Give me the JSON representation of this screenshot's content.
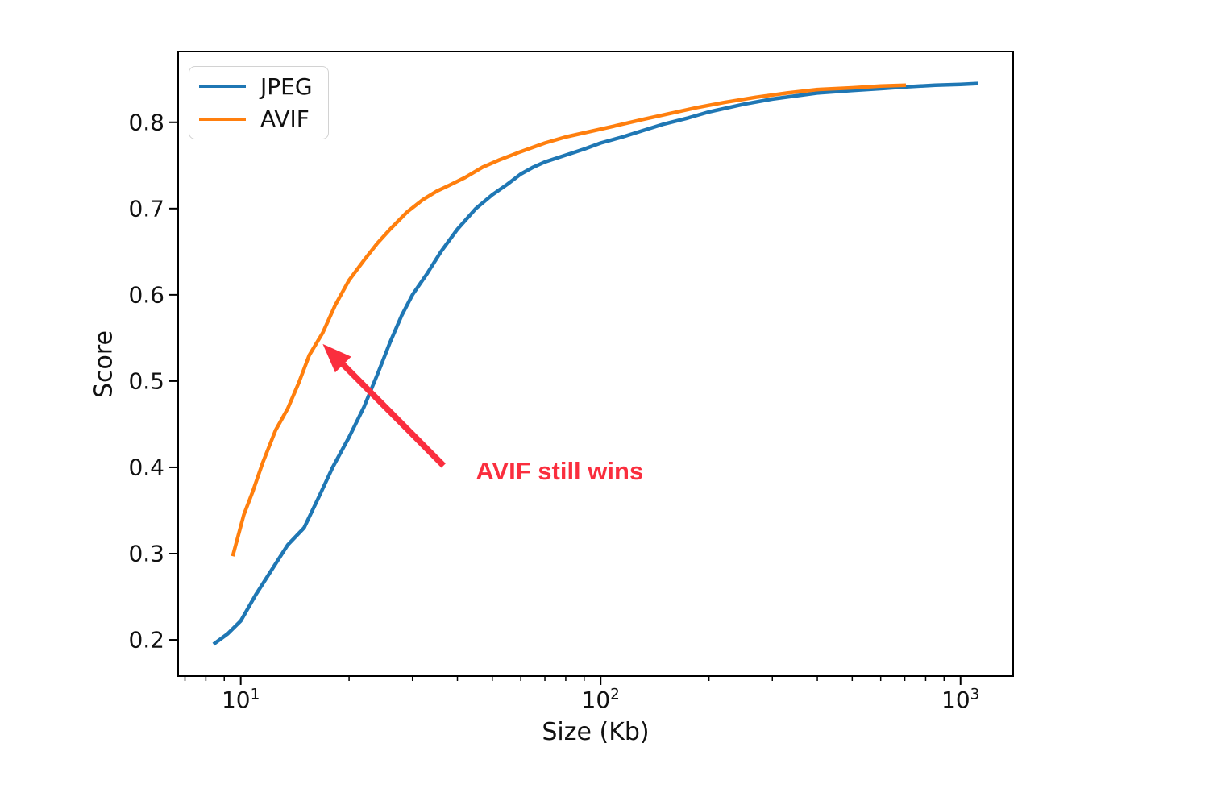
{
  "chart_data": {
    "type": "line",
    "title": "",
    "xlabel": "Size (Kb)",
    "ylabel": "Score",
    "x_scale": "log",
    "xlim": [
      6.7,
      1400
    ],
    "ylim": [
      0.158,
      0.882
    ],
    "grid": false,
    "legend_position": "upper-left",
    "xticks": {
      "major": [
        10,
        100,
        1000
      ],
      "major_labels": [
        {
          "base": "10",
          "exp": "1"
        },
        {
          "base": "10",
          "exp": "2"
        },
        {
          "base": "10",
          "exp": "3"
        }
      ],
      "minor": [
        7,
        8,
        9,
        20,
        30,
        40,
        50,
        60,
        70,
        80,
        90,
        200,
        300,
        400,
        500,
        600,
        700,
        800,
        900
      ]
    },
    "yticks": [
      0.2,
      0.3,
      0.4,
      0.5,
      0.6,
      0.7,
      0.8
    ],
    "series": [
      {
        "name": "JPEG",
        "color": "#1f77b4",
        "points": [
          [
            8.4,
            0.195
          ],
          [
            9.2,
            0.207
          ],
          [
            10,
            0.222
          ],
          [
            11,
            0.252
          ],
          [
            12.4,
            0.286
          ],
          [
            13.5,
            0.31
          ],
          [
            15,
            0.33
          ],
          [
            16.5,
            0.366
          ],
          [
            18,
            0.4
          ],
          [
            20,
            0.435
          ],
          [
            22,
            0.47
          ],
          [
            24,
            0.508
          ],
          [
            26,
            0.545
          ],
          [
            28,
            0.576
          ],
          [
            30,
            0.6
          ],
          [
            33,
            0.625
          ],
          [
            36,
            0.65
          ],
          [
            40,
            0.676
          ],
          [
            45,
            0.7
          ],
          [
            50,
            0.716
          ],
          [
            55,
            0.728
          ],
          [
            60,
            0.74
          ],
          [
            65,
            0.748
          ],
          [
            70,
            0.754
          ],
          [
            80,
            0.762
          ],
          [
            90,
            0.769
          ],
          [
            100,
            0.776
          ],
          [
            115,
            0.783
          ],
          [
            130,
            0.79
          ],
          [
            150,
            0.798
          ],
          [
            175,
            0.805
          ],
          [
            200,
            0.812
          ],
          [
            250,
            0.821
          ],
          [
            300,
            0.827
          ],
          [
            400,
            0.834
          ],
          [
            500,
            0.837
          ],
          [
            600,
            0.839
          ],
          [
            700,
            0.841
          ],
          [
            850,
            0.843
          ],
          [
            1000,
            0.844
          ],
          [
            1120,
            0.845
          ]
        ]
      },
      {
        "name": "AVIF",
        "color": "#ff7f0e",
        "points": [
          [
            9.5,
            0.297
          ],
          [
            10.2,
            0.345
          ],
          [
            10.8,
            0.372
          ],
          [
            11.5,
            0.405
          ],
          [
            12.5,
            0.443
          ],
          [
            13.5,
            0.468
          ],
          [
            14.5,
            0.498
          ],
          [
            15.5,
            0.53
          ],
          [
            16.9,
            0.556
          ],
          [
            18.3,
            0.588
          ],
          [
            20,
            0.617
          ],
          [
            22,
            0.64
          ],
          [
            24,
            0.66
          ],
          [
            26,
            0.676
          ],
          [
            29,
            0.696
          ],
          [
            32,
            0.71
          ],
          [
            35,
            0.72
          ],
          [
            38,
            0.727
          ],
          [
            42,
            0.736
          ],
          [
            47,
            0.748
          ],
          [
            52,
            0.756
          ],
          [
            60,
            0.766
          ],
          [
            70,
            0.776
          ],
          [
            80,
            0.783
          ],
          [
            95,
            0.79
          ],
          [
            110,
            0.796
          ],
          [
            130,
            0.803
          ],
          [
            155,
            0.81
          ],
          [
            185,
            0.817
          ],
          [
            220,
            0.823
          ],
          [
            270,
            0.829
          ],
          [
            330,
            0.834
          ],
          [
            400,
            0.838
          ],
          [
            500,
            0.84
          ],
          [
            600,
            0.842
          ],
          [
            705,
            0.843
          ]
        ]
      }
    ],
    "annotation": {
      "text": "AVIF still wins",
      "color": "#fa2e3e",
      "text_xy": [
        45,
        0.412
      ],
      "arrow_tail_xy": [
        36.6,
        0.402
      ],
      "arrow_tip_xy": [
        16.9,
        0.543
      ]
    }
  }
}
